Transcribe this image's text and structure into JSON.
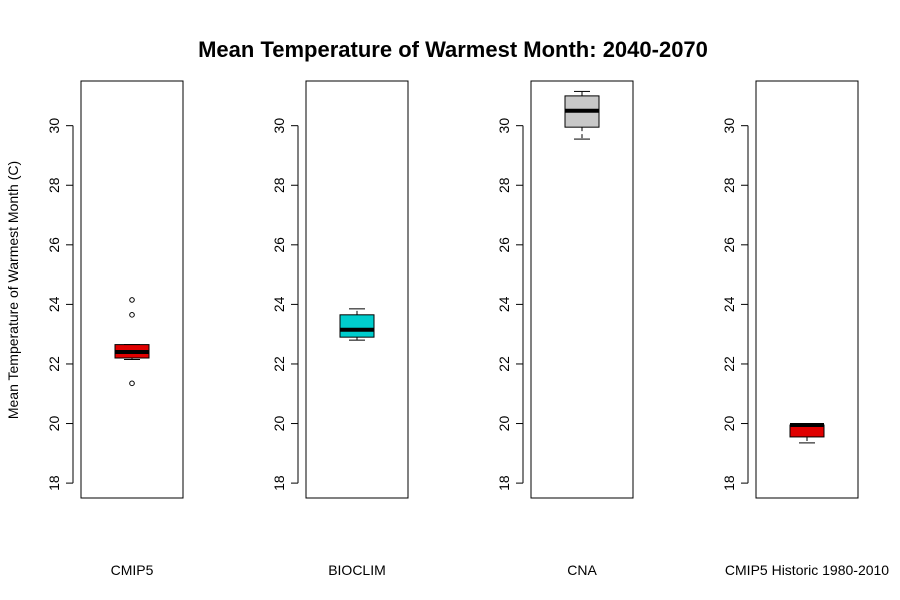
{
  "chart_data": {
    "type": "box",
    "title": "Mean Temperature  of Warmest Month: 2040-2070",
    "ylabel": "Mean Temperature of Warmest Month (C)",
    "ylim": [
      17.5,
      31.5
    ],
    "yticks": [
      18,
      20,
      22,
      24,
      26,
      28,
      30
    ],
    "yticks_shown": [
      [
        18,
        20,
        22,
        24,
        26,
        28,
        30
      ],
      [
        18,
        20,
        22,
        24,
        26,
        28,
        30
      ],
      [
        18,
        20,
        22,
        24,
        26,
        28,
        30
      ],
      [
        18,
        20,
        22,
        24,
        26,
        28,
        30
      ]
    ],
    "panels": [
      {
        "category": "CMIP5",
        "color": "#e00000",
        "whisker_low": 22.15,
        "q1": 22.2,
        "median": 22.4,
        "q3": 22.65,
        "whisker_high": 22.65,
        "outliers": [
          24.15,
          23.65,
          21.35
        ]
      },
      {
        "category": "BIOCLIM",
        "color": "#00cdcd",
        "whisker_low": 22.8,
        "q1": 22.9,
        "median": 23.15,
        "q3": 23.65,
        "whisker_high": 23.85,
        "outliers": []
      },
      {
        "category": "CNA",
        "color": "#c8c8c8",
        "whisker_low": 29.55,
        "q1": 29.95,
        "median": 30.5,
        "q3": 31.0,
        "whisker_high": 31.15,
        "outliers": []
      },
      {
        "category": "CMIP5 Historic 1980-2010",
        "color": "#e00000",
        "whisker_low": 19.35,
        "q1": 19.55,
        "median": 19.95,
        "q3": 19.95,
        "whisker_high": 19.95,
        "outliers": []
      }
    ]
  }
}
